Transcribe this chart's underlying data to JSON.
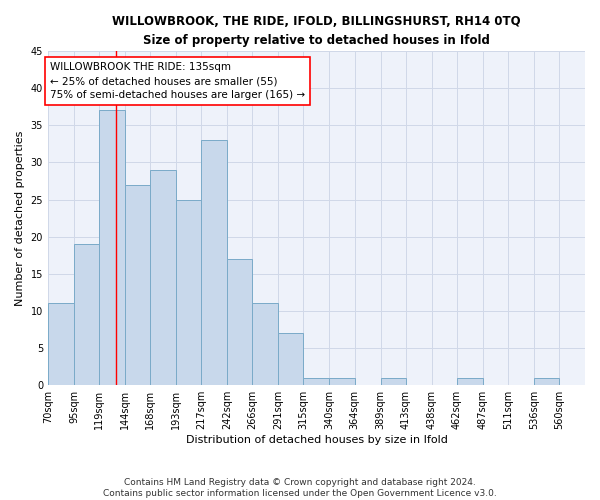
{
  "title1": "WILLOWBROOK, THE RIDE, IFOLD, BILLINGSHURST, RH14 0TQ",
  "title2": "Size of property relative to detached houses in Ifold",
  "xlabel": "Distribution of detached houses by size in Ifold",
  "ylabel": "Number of detached properties",
  "bin_edges": [
    70,
    95,
    119,
    144,
    168,
    193,
    217,
    242,
    266,
    291,
    315,
    340,
    364,
    389,
    413,
    438,
    462,
    487,
    511,
    536,
    560,
    585
  ],
  "tick_labels": [
    "70sqm",
    "95sqm",
    "119sqm",
    "144sqm",
    "168sqm",
    "193sqm",
    "217sqm",
    "242sqm",
    "266sqm",
    "291sqm",
    "315sqm",
    "340sqm",
    "364sqm",
    "389sqm",
    "413sqm",
    "438sqm",
    "462sqm",
    "487sqm",
    "511sqm",
    "536sqm",
    "560sqm"
  ],
  "values": [
    11,
    19,
    37,
    27,
    29,
    25,
    33,
    17,
    11,
    7,
    1,
    1,
    0,
    1,
    0,
    0,
    1,
    0,
    0,
    1,
    0
  ],
  "bar_color": "#c8d8eb",
  "bar_edge_color": "#7aaac8",
  "background_color": "#eef2fa",
  "grid_color": "#d0d8e8",
  "red_line_x": 135,
  "annotation_text": "WILLOWBROOK THE RIDE: 135sqm\n← 25% of detached houses are smaller (55)\n75% of semi-detached houses are larger (165) →",
  "footer": "Contains HM Land Registry data © Crown copyright and database right 2024.\nContains public sector information licensed under the Open Government Licence v3.0.",
  "ylim": [
    0,
    45
  ],
  "yticks": [
    0,
    5,
    10,
    15,
    20,
    25,
    30,
    35,
    40,
    45
  ],
  "title1_fontsize": 8.5,
  "title2_fontsize": 8.5,
  "axis_label_fontsize": 8,
  "tick_fontsize": 7,
  "annotation_fontsize": 7.5,
  "footer_fontsize": 6.5
}
